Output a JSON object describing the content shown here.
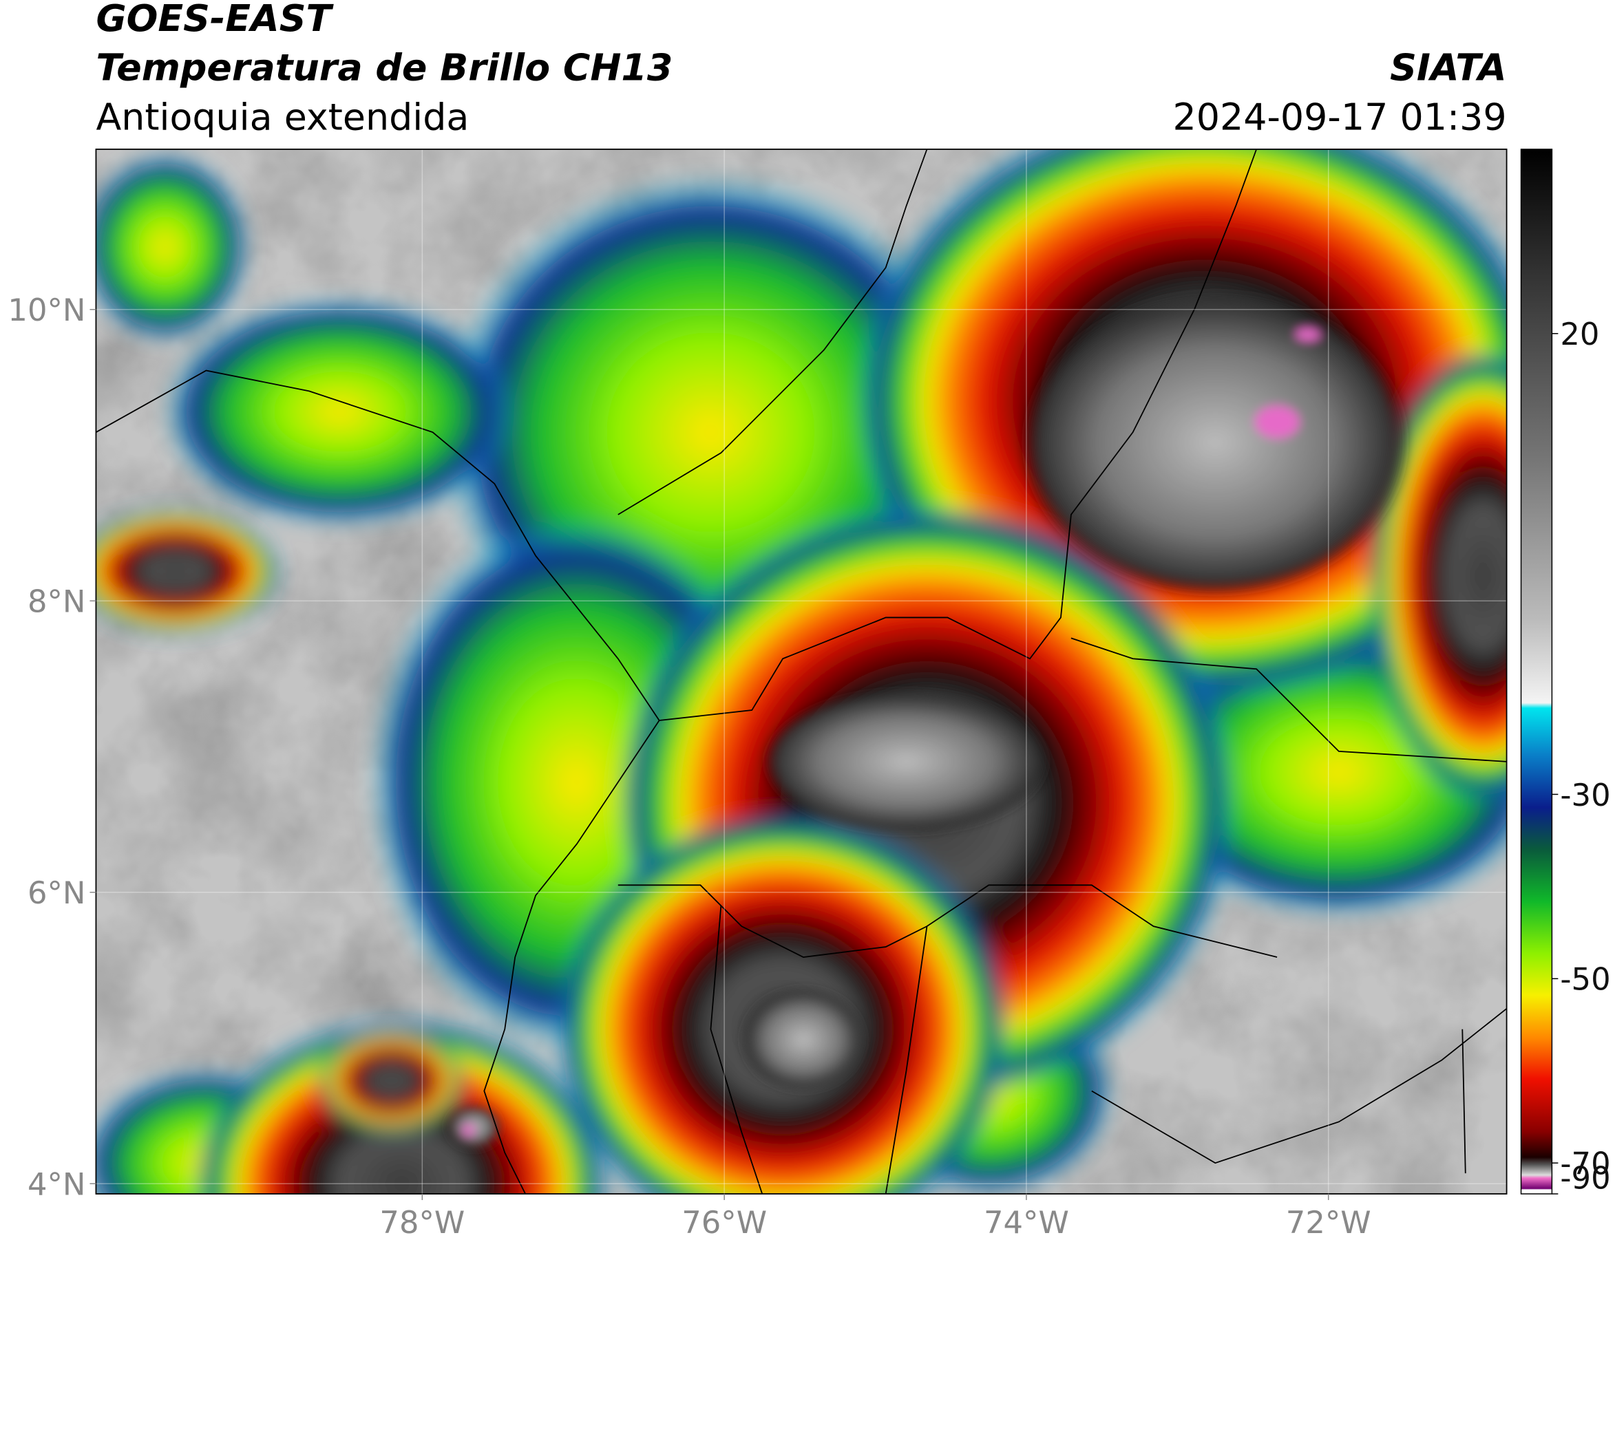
{
  "header": {
    "satellite": "GOES-EAST",
    "product": "Temperatura de Brillo CH13",
    "region": "Antioquia extendida",
    "source": "SIATA",
    "timestamp": "2024-09-17 01:39"
  },
  "map": {
    "xlim": [
      -80.16,
      -70.82
    ],
    "ylim": [
      3.93,
      11.1
    ],
    "xticks": [
      {
        "value": -78,
        "label": "78°W"
      },
      {
        "value": -76,
        "label": "76°W"
      },
      {
        "value": -74,
        "label": "74°W"
      },
      {
        "value": -72,
        "label": "72°W"
      }
    ],
    "yticks": [
      {
        "value": 10,
        "label": "10°N"
      },
      {
        "value": 8,
        "label": "8°N"
      },
      {
        "value": 6,
        "label": "6°N"
      },
      {
        "value": 4,
        "label": "4°N"
      }
    ]
  },
  "colorbar": {
    "clim": [
      -90,
      40
    ],
    "ticks": [
      20,
      -30,
      -50,
      -70,
      -90
    ]
  }
}
